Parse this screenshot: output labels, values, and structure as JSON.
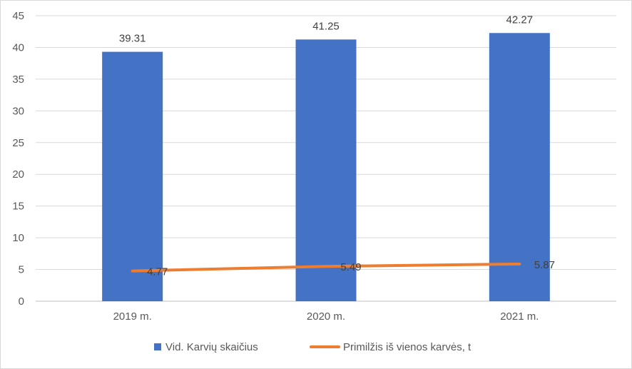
{
  "chart_data": {
    "type": "bar",
    "categories": [
      "2019 m.",
      "2020 m.",
      "2021 m."
    ],
    "series": [
      {
        "name": "Vid. Karvių skaičius",
        "type": "bar",
        "values": [
          39.31,
          41.25,
          42.27
        ],
        "labels": [
          "39.31",
          "41.25",
          "42.27"
        ],
        "color": "#4472C4"
      },
      {
        "name": "Primilžis iš vienos karvės, t",
        "type": "line",
        "values": [
          4.77,
          5.49,
          5.87
        ],
        "labels": [
          "4.77",
          "5.49",
          "5.87"
        ],
        "color": "#ED7D31"
      }
    ],
    "ylim": [
      0,
      45
    ],
    "yticks": [
      "0",
      "5",
      "10",
      "15",
      "20",
      "25",
      "30",
      "35",
      "40",
      "45"
    ],
    "grid": true,
    "legend_position": "bottom",
    "title": "",
    "xlabel": "",
    "ylabel": ""
  }
}
